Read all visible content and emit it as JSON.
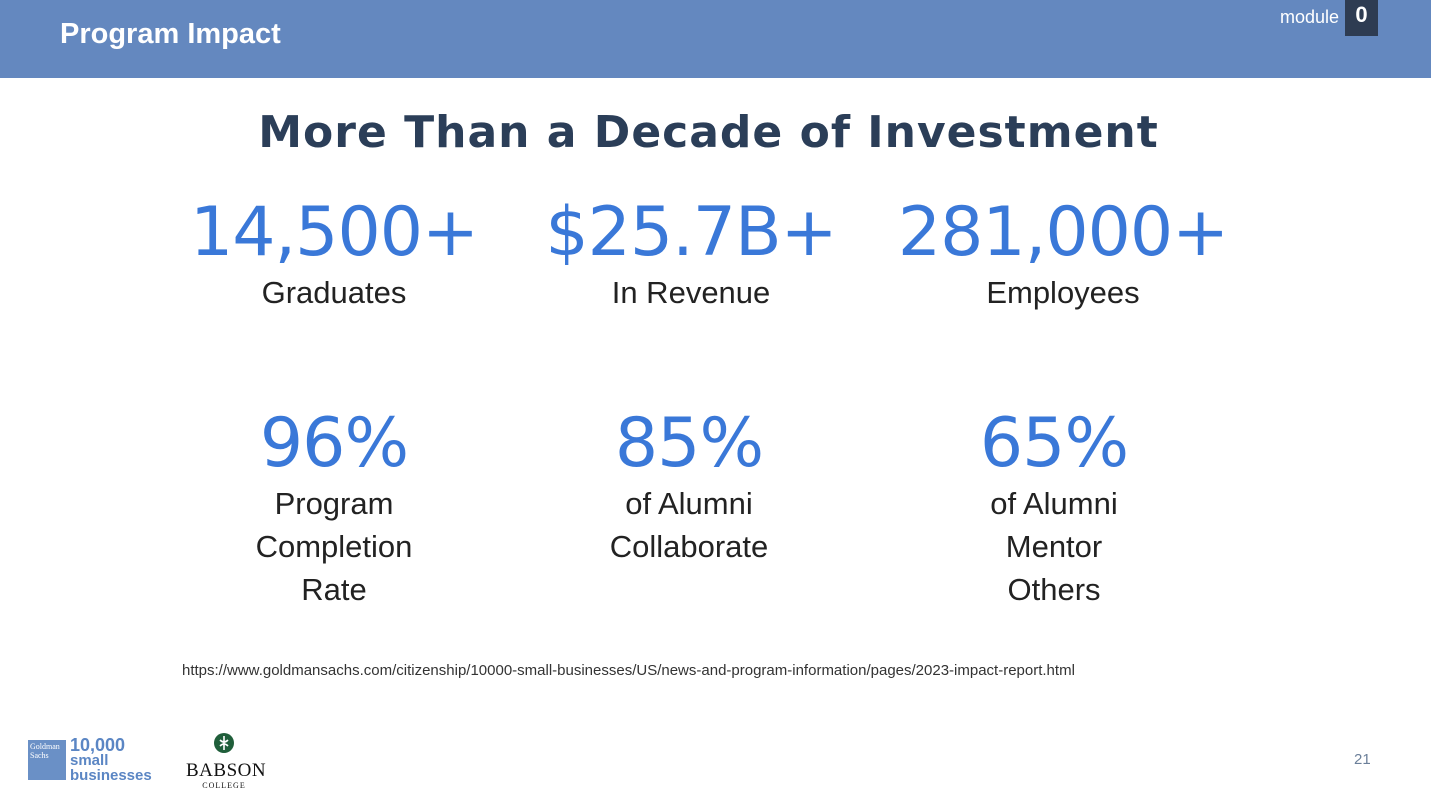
{
  "header": {
    "title": "Program Impact",
    "module_label": "module",
    "module_number": "0"
  },
  "heading": "More Than a Decade of Investment",
  "stats": [
    {
      "value": "14,500+",
      "label_lines": [
        "Graduates"
      ]
    },
    {
      "value": "$25.7B+",
      "label_lines": [
        "In Revenue"
      ]
    },
    {
      "value": "281,000+",
      "label_lines": [
        "Employees"
      ]
    },
    {
      "value": "96%",
      "label_lines": [
        "Program",
        "Completion",
        "Rate"
      ]
    },
    {
      "value": "85%",
      "label_lines": [
        "of Alumni",
        "Collaborate"
      ]
    },
    {
      "value": "65%",
      "label_lines": [
        "of Alumni",
        "Mentor",
        "Others"
      ]
    }
  ],
  "source_url": "https://www.goldmansachs.com/citizenship/10000-small-businesses/US/news-and-program-information/pages/2023-impact-report.html",
  "logos": {
    "goldman": {
      "line1": "Goldman",
      "line2": "Sachs"
    },
    "tk": {
      "number": "10,000",
      "word1": "small",
      "word2": "businesses"
    },
    "babson": {
      "name": "BABSON",
      "sub": "COLLEGE"
    }
  },
  "page_number": "21",
  "colors": {
    "header_bg": "#6488bf",
    "heading": "#2b3e58",
    "stat_value": "#3a78d8",
    "module_badge_bg": "#2e3c52"
  }
}
